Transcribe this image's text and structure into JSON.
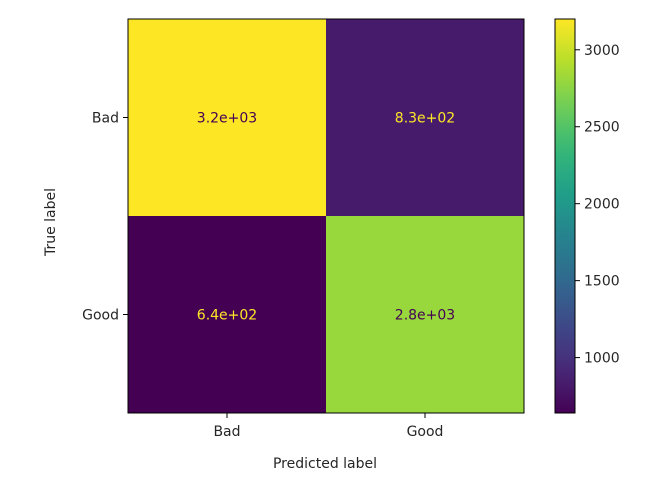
{
  "chart_data": {
    "type": "heatmap",
    "title": "",
    "xlabel": "Predicted label",
    "ylabel": "True label",
    "x_categories": [
      "Bad",
      "Good"
    ],
    "y_categories": [
      "Bad",
      "Good"
    ],
    "matrix": [
      [
        3200,
        830
      ],
      [
        640,
        2800
      ]
    ],
    "cell_labels": [
      [
        "3.2e+03",
        "8.3e+02"
      ],
      [
        "6.4e+02",
        "2.8e+03"
      ]
    ],
    "colormap": "viridis",
    "colorbar": {
      "range": [
        640,
        3200
      ],
      "ticks": [
        1000,
        1500,
        2000,
        2500,
        3000
      ],
      "tick_labels": [
        "1000",
        "1500",
        "2000",
        "2500",
        "3000"
      ]
    },
    "text_colors": {
      "on_dark": "#fde725",
      "on_light": "#440154"
    },
    "grid": false,
    "legend": "colorbar-right"
  }
}
